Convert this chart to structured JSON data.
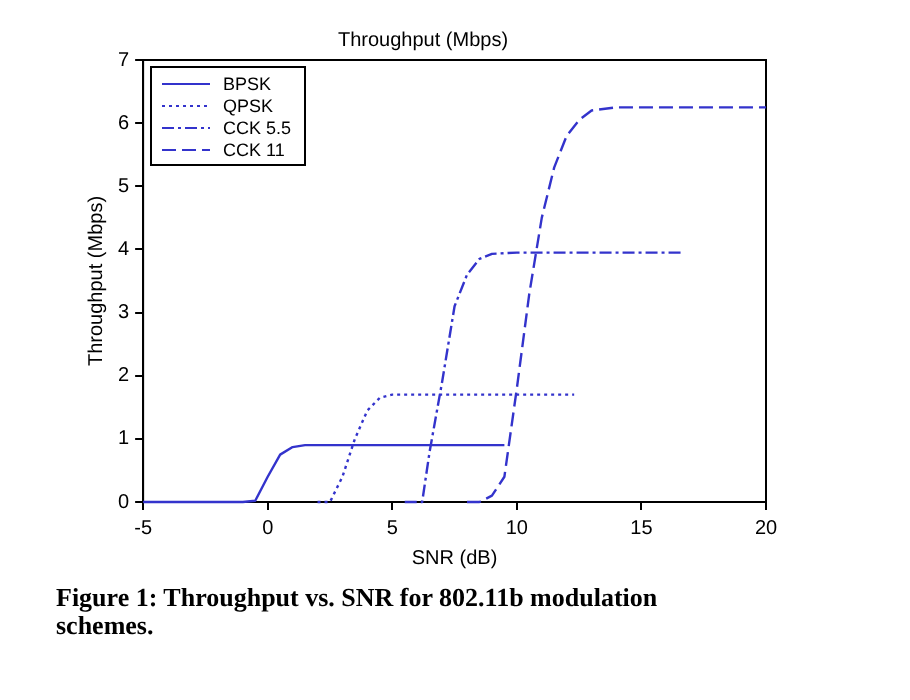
{
  "chart_data": {
    "type": "line",
    "title": "Throughput (Mbps)",
    "xlabel": "SNR (dB)",
    "ylabel": "Throughput (Mbps)",
    "annotations": [
      "Figure 1: Throughput vs. SNR for 802.11b modulation schemes."
    ],
    "xlim": [
      -5,
      20
    ],
    "xticks": [
      -5,
      0,
      5,
      10,
      15,
      20
    ],
    "ylim": [
      0,
      7
    ],
    "yticks": [
      0,
      1,
      2,
      3,
      4,
      5,
      6,
      7
    ],
    "grid": false,
    "legend": "top left",
    "marker": "none",
    "series": [
      {
        "name": "BPSK",
        "color": "#3333cc",
        "line_style": "solid",
        "x": [
          -5,
          -1,
          -0.5,
          0,
          0.5,
          1,
          1.5,
          2,
          9.5
        ],
        "values": [
          0,
          0,
          0.02,
          0.4,
          0.75,
          0.87,
          0.9,
          0.9,
          0.9
        ]
      },
      {
        "name": "QPSK",
        "color": "#3333cc",
        "line_style": "dotted",
        "x": [
          2,
          2.5,
          3,
          3.5,
          4,
          4.5,
          5,
          12.3
        ],
        "values": [
          0,
          0,
          0.4,
          1.0,
          1.45,
          1.65,
          1.7,
          1.7
        ]
      },
      {
        "name": "CCK 5.5",
        "color": "#3333cc",
        "line_style": "dashdot",
        "x": [
          5.5,
          6.2,
          6.5,
          7,
          7.5,
          8,
          8.5,
          9,
          10,
          16.6
        ],
        "values": [
          0,
          0,
          0.8,
          1.9,
          3.1,
          3.6,
          3.85,
          3.93,
          3.95,
          3.95
        ]
      },
      {
        "name": "CCK 11",
        "color": "#3333cc",
        "line_style": "dashed",
        "x": [
          8,
          8.5,
          9,
          9.5,
          10,
          10.5,
          11,
          11.5,
          12,
          12.5,
          13,
          14,
          20
        ],
        "values": [
          0,
          0,
          0.1,
          0.4,
          1.8,
          3.3,
          4.5,
          5.3,
          5.8,
          6.05,
          6.2,
          6.25,
          6.25
        ]
      }
    ]
  }
}
